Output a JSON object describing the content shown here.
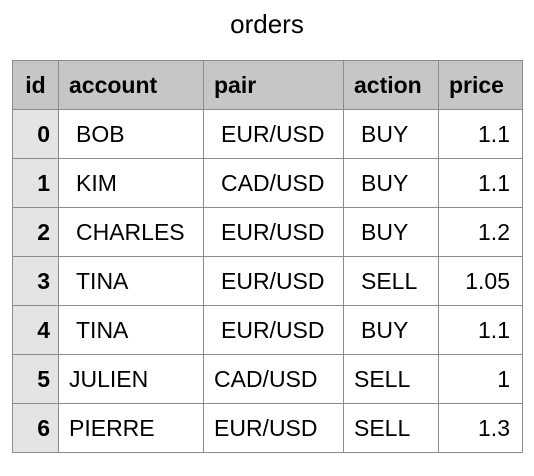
{
  "title": "orders",
  "columns": [
    "id",
    "account",
    "pair",
    "action",
    "price"
  ],
  "rows": [
    {
      "id": "0",
      "account": "BOB",
      "pair": "EUR/USD",
      "action": "BUY",
      "price": "1.1"
    },
    {
      "id": "1",
      "account": "KIM",
      "pair": "CAD/USD",
      "action": "BUY",
      "price": "1.1"
    },
    {
      "id": "2",
      "account": "CHARLES",
      "pair": "EUR/USD",
      "action": "BUY",
      "price": "1.2"
    },
    {
      "id": "3",
      "account": "TINA",
      "pair": "EUR/USD",
      "action": "SELL",
      "price": "1.05"
    },
    {
      "id": "4",
      "account": "TINA",
      "pair": "EUR/USD",
      "action": "BUY",
      "price": "1.1"
    },
    {
      "id": "5",
      "account": "JULIEN",
      "pair": "CAD/USD",
      "action": "SELL",
      "price": "1"
    },
    {
      "id": "6",
      "account": "PIERRE",
      "pair": "EUR/USD",
      "action": "SELL",
      "price": "1.3"
    }
  ]
}
